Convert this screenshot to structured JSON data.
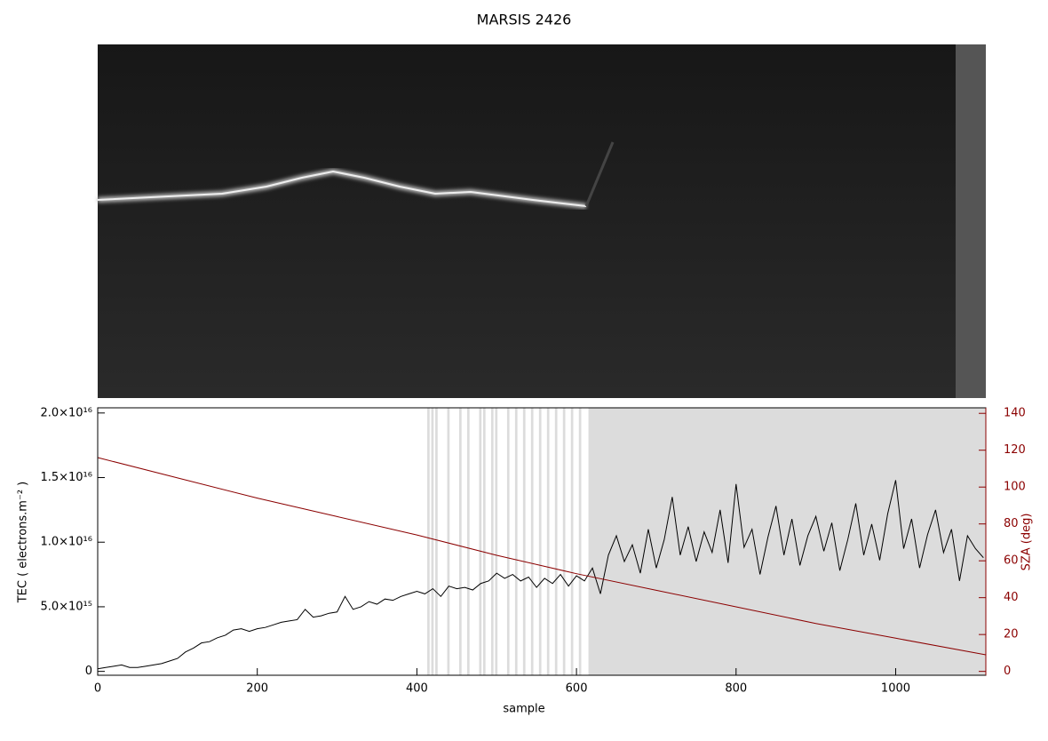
{
  "chart_data": {
    "type": "line",
    "title": "MARSIS 2426",
    "x_label": "sample",
    "y_label": "TEC ( electrons.m⁻² )",
    "y2_label": "SZA (deg)",
    "xlim": [
      0,
      1113
    ],
    "xticks": [
      0,
      200,
      400,
      600,
      800,
      1000
    ],
    "ylim": [
      -300000000000000.0,
      2.04e+16
    ],
    "yticks": [
      0,
      {
        "value": 5000000000000000.0,
        "label": "5.0×10¹⁵"
      },
      {
        "value": 1e+16,
        "label": "1.0×10¹⁶"
      },
      {
        "value": 1.5e+16,
        "label": "1.5×10¹⁶"
      },
      {
        "value": 2e+16,
        "label": "2.0×10¹⁶"
      }
    ],
    "y2lim": [
      -2.1,
      143
    ],
    "y2ticks": [
      0,
      20,
      40,
      60,
      80,
      100,
      120,
      140
    ],
    "shaded_spans": [
      [
        413,
        416
      ],
      [
        418,
        421
      ],
      [
        423,
        426
      ],
      [
        438,
        441
      ],
      [
        453,
        456
      ],
      [
        463,
        466
      ],
      [
        478,
        481
      ],
      [
        483,
        486
      ],
      [
        493,
        496
      ],
      [
        498,
        501
      ],
      [
        513,
        516
      ],
      [
        523,
        526
      ],
      [
        533,
        536
      ],
      [
        543,
        546
      ],
      [
        553,
        556
      ],
      [
        563,
        566
      ],
      [
        573,
        576
      ],
      [
        583,
        586
      ],
      [
        593,
        596
      ],
      [
        603,
        606
      ],
      [
        615,
        1113
      ]
    ],
    "shade_color": "#dcdcdc",
    "series": [
      {
        "name": "TEC",
        "color": "#000000",
        "x": [
          0,
          10,
          20,
          30,
          40,
          50,
          60,
          70,
          80,
          90,
          100,
          110,
          120,
          130,
          140,
          150,
          160,
          170,
          180,
          190,
          200,
          210,
          220,
          230,
          240,
          250,
          260,
          270,
          280,
          290,
          300,
          310,
          320,
          330,
          340,
          350,
          360,
          370,
          380,
          390,
          400,
          410,
          420,
          430,
          440,
          450,
          460,
          470,
          480,
          490,
          500,
          510,
          520,
          530,
          540,
          550,
          560,
          570,
          580,
          590,
          600,
          610,
          620,
          630,
          640,
          650,
          660,
          670,
          680,
          690,
          700,
          710,
          720,
          730,
          740,
          750,
          760,
          770,
          780,
          790,
          800,
          810,
          820,
          830,
          840,
          850,
          860,
          870,
          880,
          890,
          900,
          910,
          920,
          930,
          940,
          950,
          960,
          970,
          980,
          990,
          1000,
          1010,
          1020,
          1030,
          1040,
          1050,
          1060,
          1070,
          1080,
          1090,
          1100,
          1110
        ],
        "values": [
          200000000000000.0,
          300000000000000.0,
          400000000000000.0,
          500000000000000.0,
          300000000000000.0,
          300000000000000.0,
          400000000000000.0,
          500000000000000.0,
          600000000000000.0,
          800000000000000.0,
          1000000000000000.0,
          1500000000000000.0,
          1800000000000000.0,
          2200000000000000.0,
          2300000000000000.0,
          2600000000000000.0,
          2800000000000000.0,
          3200000000000000.0,
          3300000000000000.0,
          3100000000000000.0,
          3300000000000000.0,
          3400000000000000.0,
          3600000000000000.0,
          3800000000000000.0,
          3900000000000000.0,
          4000000000000000.0,
          4800000000000000.0,
          4200000000000000.0,
          4300000000000000.0,
          4500000000000000.0,
          4600000000000000.0,
          5800000000000000.0,
          4800000000000000.0,
          5000000000000000.0,
          5400000000000000.0,
          5200000000000000.0,
          5600000000000000.0,
          5500000000000000.0,
          5800000000000000.0,
          6000000000000000.0,
          6200000000000000.0,
          6000000000000000.0,
          6400000000000000.0,
          5800000000000000.0,
          6600000000000000.0,
          6400000000000000.0,
          6500000000000000.0,
          6300000000000000.0,
          6800000000000000.0,
          7000000000000000.0,
          7600000000000000.0,
          7200000000000000.0,
          7500000000000000.0,
          7000000000000000.0,
          7300000000000000.0,
          6500000000000000.0,
          7200000000000000.0,
          6800000000000000.0,
          7500000000000000.0,
          6600000000000000.0,
          7400000000000000.0,
          7000000000000000.0,
          8000000000000000.0,
          6000000000000000.0,
          9000000000000000.0,
          1.05e+16,
          8500000000000000.0,
          9800000000000000.0,
          7600000000000000.0,
          1.1e+16,
          8000000000000000.0,
          1.02e+16,
          1.35e+16,
          9000000000000000.0,
          1.12e+16,
          8500000000000000.0,
          1.08e+16,
          9200000000000000.0,
          1.25e+16,
          8400000000000000.0,
          1.45e+16,
          9600000000000000.0,
          1.1e+16,
          7500000000000000.0,
          1.04e+16,
          1.28e+16,
          9000000000000000.0,
          1.18e+16,
          8200000000000000.0,
          1.05e+16,
          1.2e+16,
          9300000000000000.0,
          1.15e+16,
          7800000000000000.0,
          1.02e+16,
          1.3e+16,
          9000000000000000.0,
          1.14e+16,
          8600000000000000.0,
          1.22e+16,
          1.48e+16,
          9500000000000000.0,
          1.18e+16,
          8000000000000000.0,
          1.06e+16,
          1.25e+16,
          9200000000000000.0,
          1.1e+16,
          7000000000000000.0,
          1.05e+16,
          9500000000000000.0,
          8800000000000000.0
        ]
      },
      {
        "name": "SZA",
        "color": "#8b0000",
        "axis": "y2",
        "x": [
          0,
          100,
          200,
          300,
          400,
          500,
          600,
          700,
          800,
          900,
          1000,
          1113
        ],
        "values": [
          116,
          105,
          94,
          84,
          74,
          63,
          53,
          44,
          35,
          26,
          18,
          9
        ]
      }
    ]
  }
}
